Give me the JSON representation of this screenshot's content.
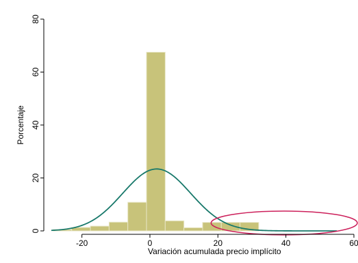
{
  "chart_data": {
    "type": "bar",
    "subtype": "histogram with normal density overlay",
    "title": "",
    "xlabel": "Variación acumulada precio implícito",
    "ylabel": "Porcentaje",
    "xlim": [
      -30,
      60
    ],
    "ylim": [
      0,
      80
    ],
    "x_ticks": [
      -20,
      0,
      20,
      40,
      60
    ],
    "x_tick_labels": [
      "-20",
      "0",
      "20",
      "40",
      "60"
    ],
    "y_ticks": [
      0,
      20,
      40,
      60,
      80
    ],
    "y_tick_labels": [
      "0",
      "20",
      "40",
      "60",
      "80"
    ],
    "grid": false,
    "legend": "none",
    "bins": [
      {
        "x0": -28.5,
        "x1": -23,
        "value": 0.5
      },
      {
        "x0": -23,
        "x1": -17.5,
        "value": 1.3
      },
      {
        "x0": -17.5,
        "x1": -12,
        "value": 1.8
      },
      {
        "x0": -12,
        "x1": -6.5,
        "value": 3.3
      },
      {
        "x0": -6.5,
        "x1": -1,
        "value": 10.8
      },
      {
        "x0": -1,
        "x1": 4.5,
        "value": 67.5
      },
      {
        "x0": 4.5,
        "x1": 10,
        "value": 3.8
      },
      {
        "x0": 10,
        "x1": 15.5,
        "value": 1.2
      },
      {
        "x0": 15.5,
        "x1": 21,
        "value": 3.2
      },
      {
        "x0": 21,
        "x1": 26.5,
        "value": 3.2
      },
      {
        "x0": 26.5,
        "x1": 32,
        "value": 3.2
      }
    ],
    "normal_curve": {
      "mean": 2,
      "sd": 10,
      "scale": 23.4,
      "x_range": [
        -29,
        55
      ]
    },
    "annotation": {
      "type": "ellipse",
      "x_range": [
        18,
        61
      ],
      "y_range": [
        -1.5,
        7.5
      ]
    },
    "colors": {
      "bars": "#c8c37a",
      "bar_edge": "#e8e6c6",
      "curve": "#17786a",
      "annotation": "#cc1f5a"
    }
  }
}
